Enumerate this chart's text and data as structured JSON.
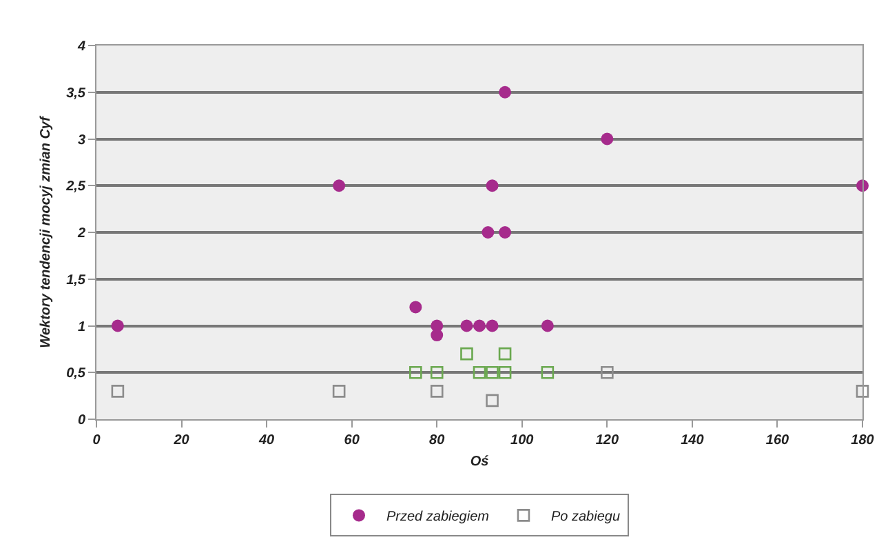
{
  "chart_data": {
    "type": "scatter",
    "xlabel": "Oś",
    "ylabel": "Wektory tendencji mocyj zmian Cyf",
    "xlim": [
      0,
      180
    ],
    "xticks": [
      0,
      20,
      40,
      60,
      80,
      100,
      120,
      140,
      160,
      180
    ],
    "ylim": [
      0,
      4
    ],
    "yticks": [
      0,
      {
        "value": 0.5,
        "label": "0,5"
      },
      1,
      {
        "value": 1.5,
        "label": "1,5"
      },
      2,
      {
        "value": 2.5,
        "label": "2,5"
      },
      3,
      {
        "value": 3.5,
        "label": "3,5"
      },
      4
    ],
    "grid": "y",
    "legend": "bottom",
    "series": [
      {
        "name": "Przed zabiegiem",
        "color": "#a62b8c",
        "marker": "circle",
        "x": [
          5,
          57,
          75,
          80,
          80,
          87,
          90,
          93,
          106,
          92,
          96,
          93,
          96,
          120,
          180
        ],
        "values": [
          1,
          2.5,
          1.2,
          1,
          0.9,
          1,
          1,
          1,
          1,
          2,
          2,
          2.5,
          3.5,
          3,
          2.5
        ]
      },
      {
        "name": "Po zabiegu",
        "color": "#6aa84f",
        "marker": "square",
        "x": [
          5,
          57,
          75,
          80,
          80,
          87,
          90,
          93,
          93,
          96,
          96,
          106,
          120,
          180
        ],
        "values": [
          0.3,
          0.3,
          0.5,
          0.5,
          0.3,
          0.7,
          0.5,
          0.5,
          0.2,
          0.7,
          0.5,
          0.5,
          0.5,
          0.3
        ],
        "colors": [
          "#8c8c8c",
          "#8c8c8c",
          "#6aa84f",
          "#6aa84f",
          "#8c8c8c",
          "#6aa84f",
          "#6aa84f",
          "#6aa84f",
          "#8c8c8c",
          "#6aa84f",
          "#6aa84f",
          "#6aa84f",
          "#8c8c8c",
          "#8c8c8c"
        ]
      }
    ]
  }
}
